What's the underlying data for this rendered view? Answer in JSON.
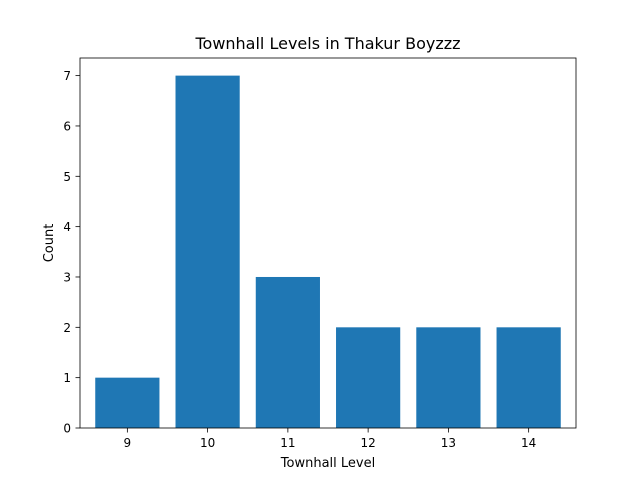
{
  "chart_data": {
    "type": "bar",
    "title": "Townhall Levels in Thakur Boyzzz",
    "xlabel": "Townhall Level",
    "ylabel": "Count",
    "categories": [
      "9",
      "10",
      "11",
      "12",
      "13",
      "14"
    ],
    "values": [
      1,
      7,
      3,
      2,
      2,
      2
    ],
    "ylim": [
      0,
      7.35
    ],
    "yticks": [
      0,
      1,
      2,
      3,
      4,
      5,
      6,
      7
    ],
    "grid": false,
    "bar_color": "#1f77b4"
  }
}
